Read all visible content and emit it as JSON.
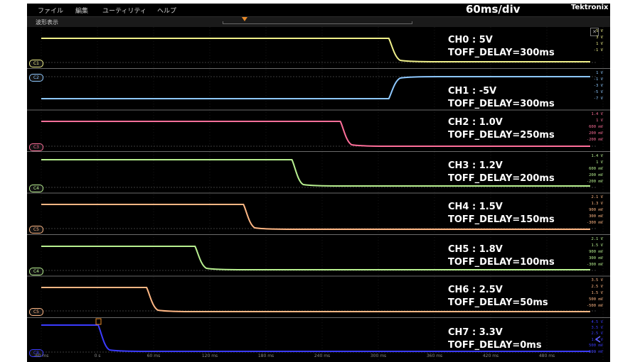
{
  "menu": [
    "ファイル",
    "編集",
    "ユーティリティ",
    "ヘルプ"
  ],
  "timebase_label": "60ms/div",
  "brand": "Tektronix",
  "window_title": "波形表示",
  "x_ticks": [
    "-60 ms",
    "0 s",
    "60 ms",
    "120 ms",
    "180 ms",
    "240 ms",
    "300 ms",
    "360 ms",
    "420 ms",
    "480 ms"
  ],
  "channels": [
    {
      "tag": "C1",
      "color": "#f0f08a",
      "line1": "CH0 : 5V",
      "line2": "TOFF_DELAY=300ms",
      "scales": [
        "5 V",
        "3 V",
        "1 V",
        "-1 V"
      ],
      "drop_ms": 300,
      "rising": false
    },
    {
      "tag": "C2",
      "color": "#8ec8ff",
      "line1": "CH1 : -5V",
      "line2": "TOFF_DELAY=300ms",
      "scales": [
        "1 V",
        "-1 V",
        "-3 V",
        "-5 V",
        "-7 V"
      ],
      "drop_ms": 300,
      "rising": true
    },
    {
      "tag": "C3",
      "color": "#ff6f9a",
      "line1": "CH2 : 1.0V",
      "line2": "TOFF_DELAY=250ms",
      "scales": [
        "1.4 V",
        "1 V",
        "600 mV",
        "200 mV",
        "-200 mV"
      ],
      "drop_ms": 250,
      "rising": false
    },
    {
      "tag": "C4",
      "color": "#b8f090",
      "line1": "CH3 : 1.2V",
      "line2": "TOFF_DELAY=200ms",
      "scales": [
        "1.4 V",
        "1 V",
        "600 mV",
        "200 mV",
        "-200 mV"
      ],
      "drop_ms": 200,
      "rising": false
    },
    {
      "tag": "C5",
      "color": "#ffb784",
      "line1": "CH4 : 1.5V",
      "line2": "TOFF_DELAY=150ms",
      "scales": [
        "2.1 V",
        "1.3 V",
        "900 mV",
        "300 mV",
        "-300 mV"
      ],
      "drop_ms": 150,
      "rising": false
    },
    {
      "tag": "C4",
      "color": "#b8f090",
      "line1": "CH5 : 1.8V",
      "line2": "TOFF_DELAY=100ms",
      "scales": [
        "2.1 V",
        "1.5 V",
        "900 mV",
        "300 mV",
        "-300 mV"
      ],
      "drop_ms": 100,
      "rising": false
    },
    {
      "tag": "C5",
      "color": "#ffb784",
      "line1": "CH6 : 2.5V",
      "line2": "TOFF_DELAY=50ms",
      "scales": [
        "3.5 V",
        "2.5 V",
        "1.5 V",
        "500 mV",
        "-500 mV"
      ],
      "drop_ms": 50,
      "rising": false
    },
    {
      "tag": "C8",
      "color": "#3b3bff",
      "line1": "CH7 : 3.3V",
      "line2": "TOFF_DELAY=0ms",
      "scales": [
        "4.5 V",
        "3.5 V",
        "2.5 V",
        "1.5 V",
        "500 mV",
        "-500 mV"
      ],
      "drop_ms": 0,
      "rising": false
    }
  ]
}
